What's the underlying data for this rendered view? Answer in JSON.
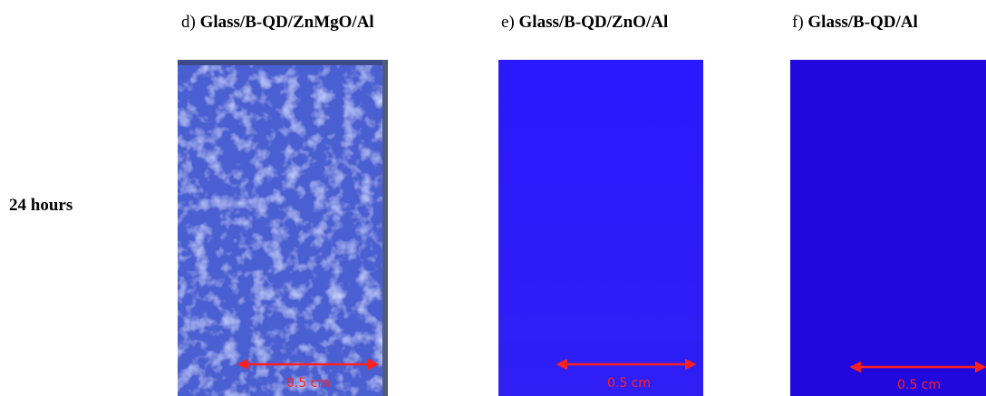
{
  "row_label": "24 hours",
  "panels": [
    {
      "letter": "d)",
      "title": "Glass/B-QD/ZnMgO/Al",
      "scale": "0.5 cm"
    },
    {
      "letter": "e)",
      "title": "Glass/B-QD/ZnO/Al",
      "scale": "0.5 cm"
    },
    {
      "letter": "f)",
      "title": "Glass/B-QD/Al",
      "scale": "0.5 cm"
    }
  ]
}
